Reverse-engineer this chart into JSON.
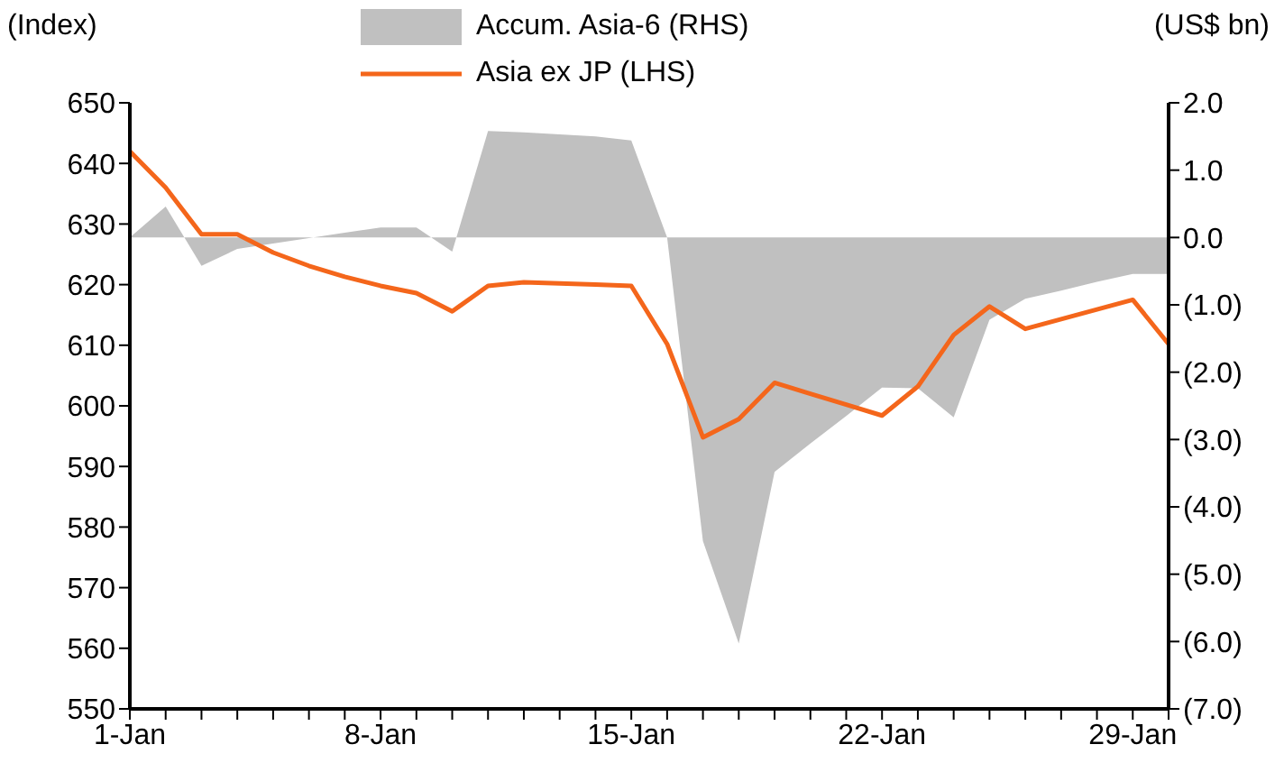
{
  "chart_data": {
    "type": "line",
    "categories": [
      "1-Jan",
      null,
      null,
      null,
      null,
      null,
      null,
      "8-Jan",
      null,
      null,
      null,
      null,
      null,
      null,
      "15-Jan",
      null,
      null,
      null,
      null,
      null,
      null,
      "22-Jan",
      null,
      null,
      null,
      null,
      null,
      null,
      "29-Jan",
      null
    ],
    "series": [
      {
        "name": "Accum. Asia-6 (RHS)",
        "type": "area",
        "axis": "y2",
        "color": "#c0c0c0",
        "values": [
          0,
          0.46,
          -0.42,
          -0.17,
          -0.09,
          -0.01,
          0.07,
          0.15,
          0.15,
          -0.21,
          1.58,
          1.56,
          1.53,
          1.5,
          1.44,
          0,
          -4.51,
          -6.03,
          -3.48,
          -3.06,
          -2.65,
          -2.23,
          -2.24,
          -2.67,
          -1.22,
          -0.91,
          -0.79,
          -0.66,
          -0.54,
          -0.54
        ]
      },
      {
        "name": "Asia ex JP (LHS)",
        "color": "#f4661b",
        "values": [
          642,
          636,
          628.3,
          628.3,
          625.3,
          623.1,
          621.3,
          619.8,
          618.6,
          615.6,
          619.8,
          620.4,
          620.2,
          620,
          619.8,
          610.2,
          594.8,
          597.8,
          603.8,
          602,
          600.2,
          598.4,
          603.2,
          611.7,
          616.4,
          612.7,
          614.3,
          615.9,
          617.5,
          610.2
        ]
      }
    ],
    "ylabel": "(Index)",
    "y2label": "(US$ bn)",
    "ylim": [
      550,
      650
    ],
    "yticks": [
      550,
      560,
      570,
      580,
      590,
      600,
      610,
      620,
      630,
      640,
      650
    ],
    "y2lim": [
      -7,
      2
    ],
    "y2ticks": [
      {
        "value": -7,
        "label": "(7.0)"
      },
      {
        "value": -6,
        "label": "(6.0)"
      },
      {
        "value": -5,
        "label": "(5.0)"
      },
      {
        "value": -4,
        "label": "(4.0)"
      },
      {
        "value": -3,
        "label": "(3.0)"
      },
      {
        "value": -2,
        "label": "(2.0)"
      },
      {
        "value": -1,
        "label": "(1.0)"
      },
      {
        "value": 0,
        "label": "0.0"
      },
      {
        "value": 1,
        "label": "1.0"
      },
      {
        "value": 2,
        "label": "2.0"
      }
    ],
    "legend": "top",
    "grid": false,
    "marker": "none",
    "line_style": "solid"
  }
}
